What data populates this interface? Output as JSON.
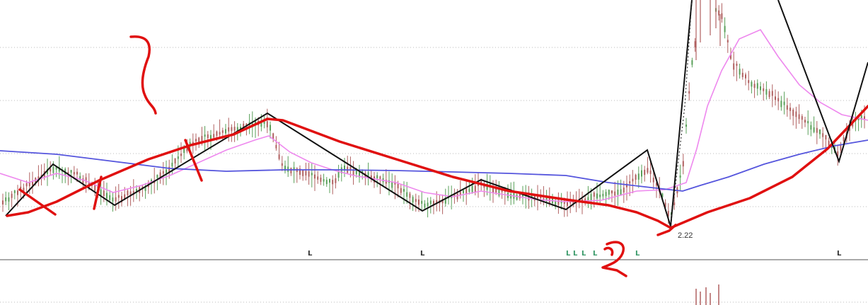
{
  "chart_data": {
    "type": "line",
    "title": "",
    "xlabel": "",
    "ylabel": "",
    "low_label": "2.22",
    "signal_markers": [
      "L",
      "L",
      "L",
      "L",
      "L",
      "L",
      "L",
      "L"
    ],
    "grid": "horizontal dotted",
    "colors": {
      "candles_up": "#5aa05a",
      "candles_down": "#b06060",
      "ma_short": "#ee88ee",
      "ma_long": "#5555dd",
      "zigzag": "#111111",
      "annotation": "#e01010",
      "signal": "#3a9a6a"
    }
  }
}
